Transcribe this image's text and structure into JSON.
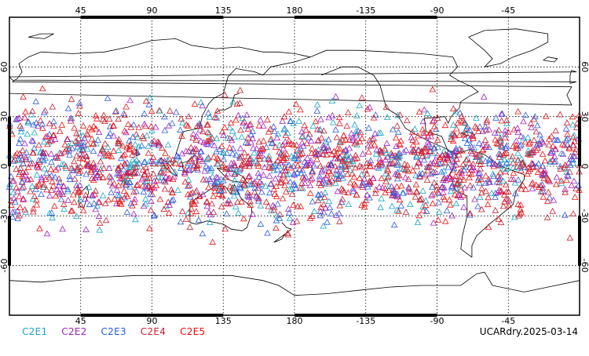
{
  "map": {
    "longitude_labels": [
      "45",
      "90",
      "135",
      "180",
      "-135",
      "-90",
      "-45"
    ],
    "longitude_values": [
      45,
      90,
      135,
      180,
      225,
      270,
      315
    ],
    "latitude_labels": [
      "60",
      "30",
      "0",
      "-30",
      "-60"
    ],
    "latitude_values": [
      60,
      30,
      0,
      -30,
      -60
    ],
    "extent": {
      "lon_min": 0,
      "lon_max": 360,
      "lat_min": -90,
      "lat_max": 90
    },
    "grid": "dotted",
    "marker": "open-triangle",
    "observation_latitude_range": [
      -50,
      52
    ]
  },
  "legend": [
    {
      "label": "C2E1",
      "color": "#19a6c4"
    },
    {
      "label": "C2E2",
      "color": "#a020c8"
    },
    {
      "label": "C2E3",
      "color": "#2a5ae6"
    },
    {
      "label": "C2E4",
      "color": "#c81e2e"
    },
    {
      "label": "C2E5",
      "color": "#ee1010"
    }
  ],
  "product_label": "UCARdry.2025-03-14"
}
